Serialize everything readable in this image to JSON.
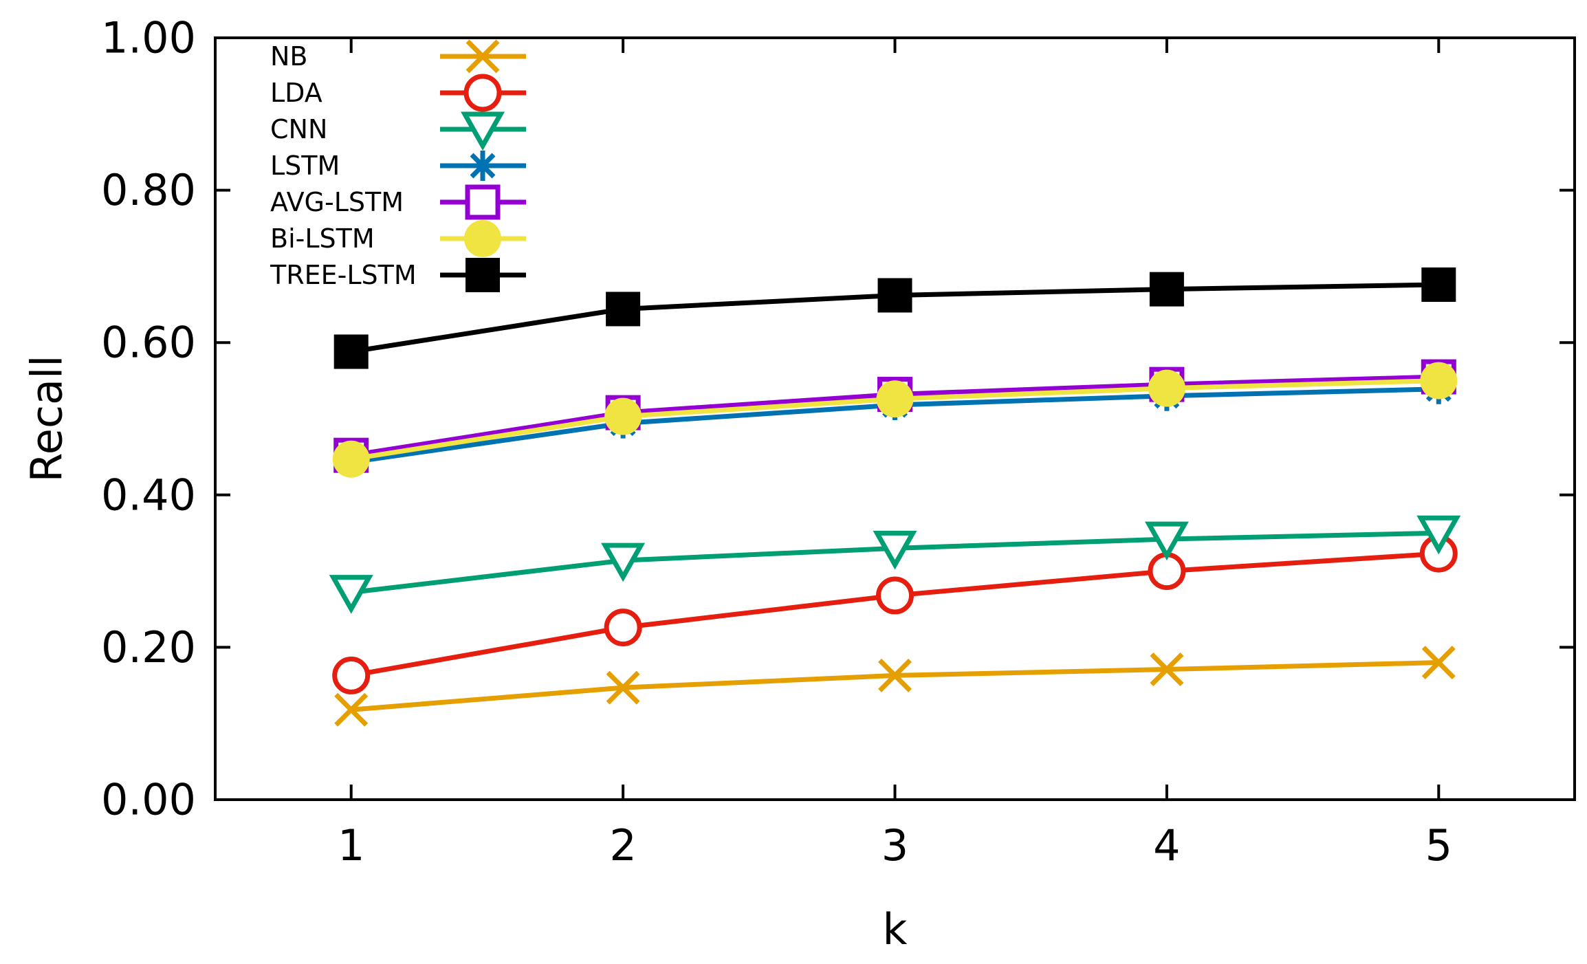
{
  "chart_data": {
    "type": "line",
    "title": "",
    "xlabel": "k",
    "ylabel": "Recall",
    "x": [
      1,
      2,
      3,
      4,
      5
    ],
    "xlim": [
      0.5,
      5.5
    ],
    "ylim": [
      0,
      1
    ],
    "x_ticks": [
      "1",
      "2",
      "3",
      "4",
      "5"
    ],
    "y_ticks": [
      0,
      0.2,
      0.4,
      0.6,
      0.8,
      1.0
    ],
    "y_tick_labels": [
      "0.00",
      "0.20",
      "0.40",
      "0.60",
      "0.80",
      "1.00"
    ],
    "grid": false,
    "legend_position": "top-left",
    "series": [
      {
        "name": "NB",
        "color": "#e69f00",
        "marker": "cross",
        "values": [
          0.118,
          0.147,
          0.163,
          0.171,
          0.18
        ]
      },
      {
        "name": "LDA",
        "color": "#e51e10",
        "marker": "circle-open",
        "values": [
          0.163,
          0.226,
          0.268,
          0.3,
          0.323
        ]
      },
      {
        "name": "CNN",
        "color": "#009e73",
        "marker": "triangle-down-open",
        "values": [
          0.272,
          0.314,
          0.33,
          0.342,
          0.35
        ]
      },
      {
        "name": "LSTM",
        "color": "#0072b2",
        "marker": "asterisk",
        "values": [
          0.443,
          0.494,
          0.518,
          0.53,
          0.539
        ]
      },
      {
        "name": "AVG-LSTM",
        "color": "#9400d3",
        "marker": "square-open",
        "values": [
          0.452,
          0.508,
          0.532,
          0.545,
          0.555
        ]
      },
      {
        "name": "Bi-LSTM",
        "color": "#f0e442",
        "marker": "circle-filled",
        "values": [
          0.447,
          0.503,
          0.526,
          0.54,
          0.55
        ]
      },
      {
        "name": "TREE-LSTM",
        "color": "#000000",
        "marker": "square-filled",
        "values": [
          0.588,
          0.644,
          0.662,
          0.67,
          0.676
        ]
      }
    ]
  }
}
